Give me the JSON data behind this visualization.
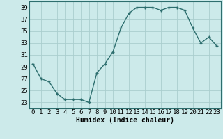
{
  "x": [
    0,
    1,
    2,
    3,
    4,
    5,
    6,
    7,
    8,
    9,
    10,
    11,
    12,
    13,
    14,
    15,
    16,
    17,
    18,
    19,
    20,
    21,
    22,
    23
  ],
  "y": [
    29.5,
    27.0,
    26.5,
    24.5,
    23.5,
    23.5,
    23.5,
    23.0,
    28.0,
    29.5,
    31.5,
    35.5,
    38.0,
    39.0,
    39.0,
    39.0,
    38.5,
    39.0,
    39.0,
    38.5,
    35.5,
    33.0,
    34.0,
    32.5
  ],
  "line_color": "#2d6e6e",
  "marker": "+",
  "marker_size": 3,
  "bg_color": "#cceaea",
  "grid_color": "#aacece",
  "xlabel": "Humidex (Indice chaleur)",
  "xlim": [
    -0.5,
    23.5
  ],
  "ylim": [
    22,
    40
  ],
  "yticks": [
    23,
    25,
    27,
    29,
    31,
    33,
    35,
    37,
    39
  ],
  "xticks": [
    0,
    1,
    2,
    3,
    4,
    5,
    6,
    7,
    8,
    9,
    10,
    11,
    12,
    13,
    14,
    15,
    16,
    17,
    18,
    19,
    20,
    21,
    22,
    23
  ],
  "xlabel_fontsize": 7,
  "tick_fontsize": 6.5,
  "line_width": 1.0
}
